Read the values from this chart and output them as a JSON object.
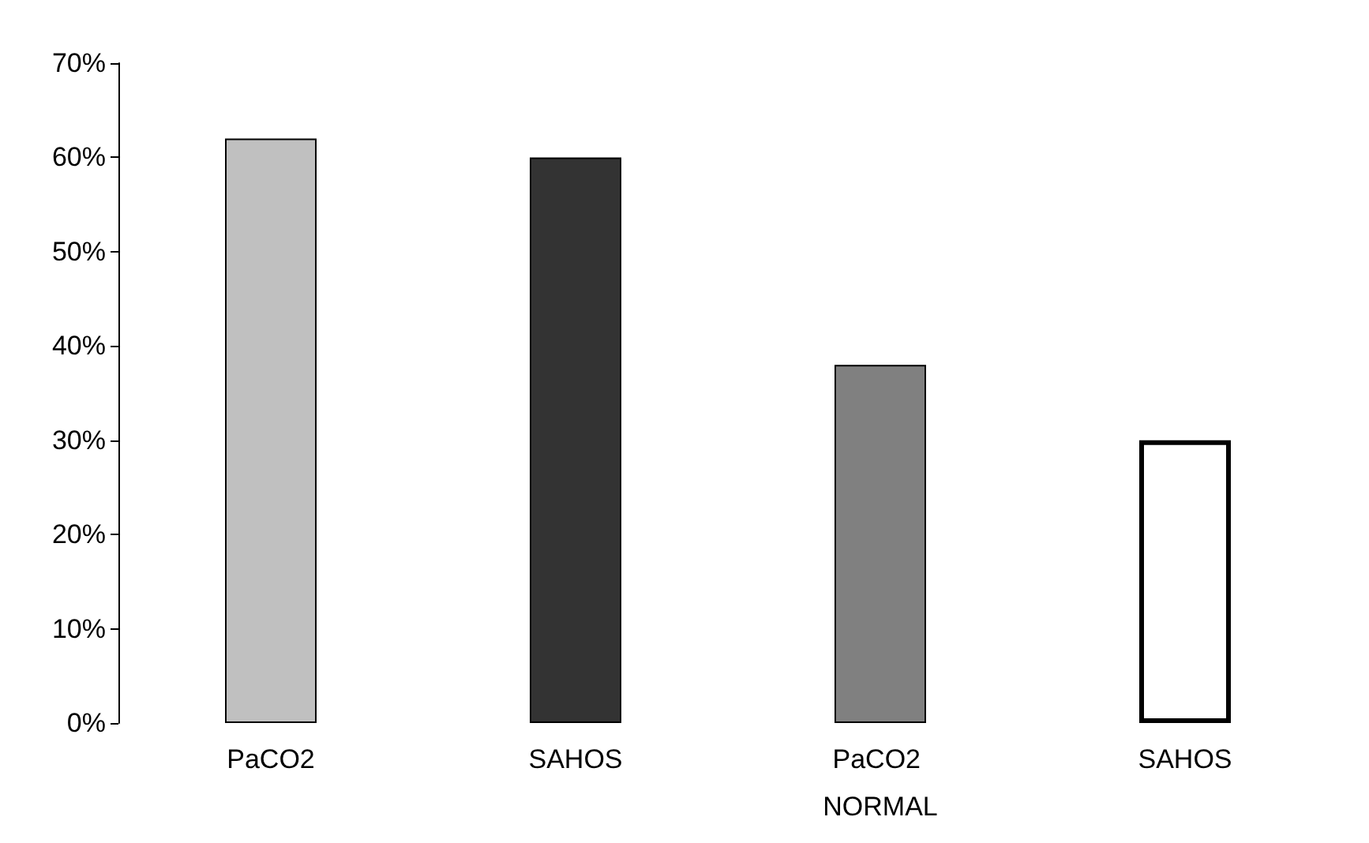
{
  "chart_data": {
    "type": "bar",
    "categories": [
      "PaCO2",
      "SAHOS",
      "PaCO2 NORMAL",
      "SAHOS"
    ],
    "values": [
      62,
      60,
      38,
      30
    ],
    "colors": [
      "#c0c0c0",
      "#333333",
      "#808080",
      "#ffffff"
    ],
    "ylim": [
      0,
      70
    ],
    "yticks": [
      {
        "value": 0,
        "label": "0%"
      },
      {
        "value": 10,
        "label": "10%"
      },
      {
        "value": 20,
        "label": "20%"
      },
      {
        "value": 30,
        "label": "30%"
      },
      {
        "value": 40,
        "label": "40%"
      },
      {
        "value": 50,
        "label": "50%"
      },
      {
        "value": 60,
        "label": "60%"
      },
      {
        "value": 70,
        "label": "70%"
      }
    ],
    "grid": false
  }
}
